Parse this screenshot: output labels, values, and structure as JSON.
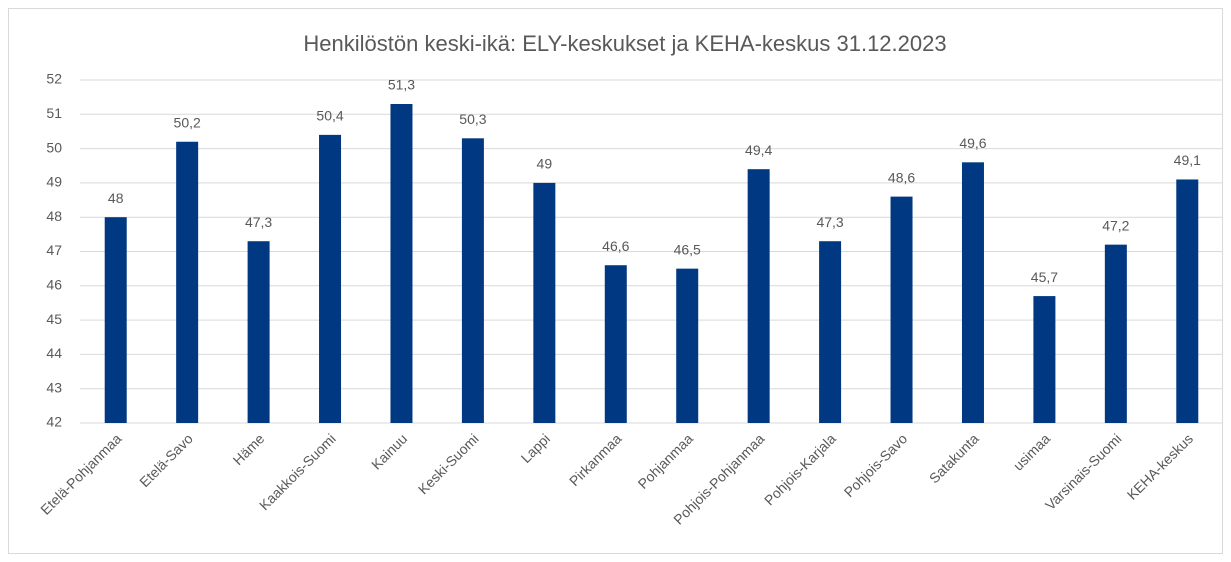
{
  "chart_data": {
    "type": "bar",
    "title": "Henkilöstön keski-ikä: ELY-keskukset ja KEHA-keskus 31.12.2023",
    "categories": [
      "Etelä-Pohjanmaa",
      "Etelä-Savo",
      "Häme",
      "Kaakkois-Suomi",
      "Kainuu",
      "Keski-Suomi",
      "Lappi",
      "Pirkanmaa",
      "Pohjanmaa",
      "Pohjois-Pohjanmaa",
      "Pohjois-Karjala",
      "Pohjois-Savo",
      "Satakunta",
      "usimaa",
      "Varsinais-Suomi",
      "KEHA-keskus"
    ],
    "values": [
      48,
      50.2,
      47.3,
      50.4,
      51.3,
      50.3,
      49,
      46.6,
      46.5,
      49.4,
      47.3,
      48.6,
      49.6,
      45.7,
      47.2,
      49.1
    ],
    "value_labels": [
      "48",
      "50,2",
      "47,3",
      "50,4",
      "51,3",
      "50,3",
      "49",
      "46,6",
      "46,5",
      "49,4",
      "47,3",
      "48,6",
      "49,6",
      "45,7",
      "47,2",
      "49,1"
    ],
    "color": "#003882",
    "ylim": [
      42,
      52
    ],
    "yticks": [
      42,
      43,
      44,
      45,
      46,
      47,
      48,
      49,
      50,
      51,
      52
    ],
    "grid": true
  }
}
